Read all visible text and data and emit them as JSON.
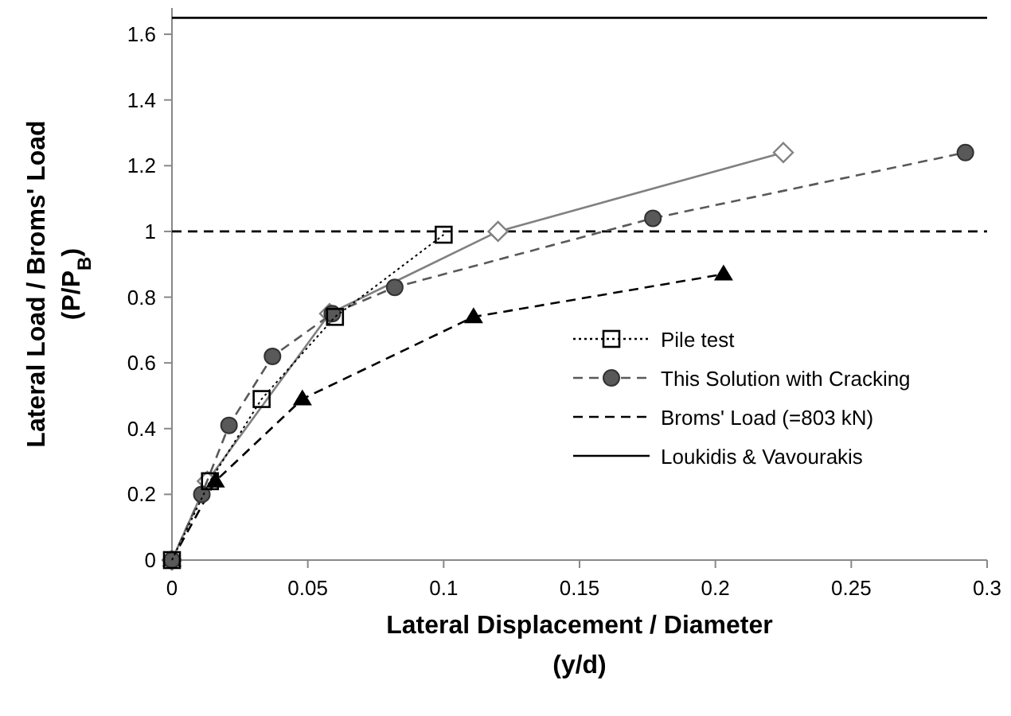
{
  "chart_data": {
    "type": "line",
    "xlabel": "Lateral Displacement / Diameter\n(y/d)",
    "ylabel": "Lateral Load / Broms' Load\n(P/P$_{B}$)",
    "xlim": [
      0,
      0.3
    ],
    "xticks": [
      0,
      0.05,
      0.1,
      0.15,
      0.2,
      0.25,
      0.3
    ],
    "ylim": [
      0,
      1.68
    ],
    "yticks": [
      0,
      0.2,
      0.4,
      0.6,
      0.8,
      1,
      1.2,
      1.4,
      1.6
    ],
    "grid": false,
    "legend": "bottom right",
    "series": [
      {
        "name": "Pile test",
        "color": "#000000",
        "marker": "square",
        "line_style": "dotted",
        "x": [
          0,
          0.014,
          0.033,
          0.06,
          0.1
        ],
        "values": [
          0,
          0.24,
          0.49,
          0.74,
          0.99
        ]
      },
      {
        "name": "This Solution with Cracking",
        "color": "#595959",
        "marker": "circle",
        "line_style": "dashed",
        "x": [
          0,
          0.011,
          0.021,
          0.037,
          0.059,
          0.082,
          0.177,
          0.292
        ],
        "values": [
          0,
          0.2,
          0.41,
          0.62,
          0.75,
          0.83,
          1.04,
          1.24
        ]
      },
      {
        "color": "#000000",
        "marker": "triangle",
        "line_style": "dashed",
        "x": [
          0,
          0.016,
          0.048,
          0.111,
          0.203
        ],
        "values": [
          0,
          0.24,
          0.49,
          0.74,
          0.87
        ]
      },
      {
        "color": "#808080",
        "marker": "diamond",
        "line_style": "solid",
        "x": [
          0,
          0.013,
          0.058,
          0.12,
          0.225
        ],
        "values": [
          0,
          0.24,
          0.75,
          1.0,
          1.24
        ]
      },
      {
        "name": "Broms' Load (=803 kN)",
        "color": "#000000",
        "marker": "none",
        "line_style": "dashed",
        "x": [
          0,
          0.3
        ],
        "values": [
          1,
          1
        ]
      },
      {
        "name": "Loukidis & Vavourakis",
        "color": "#000000",
        "marker": "none",
        "line_style": "solid",
        "x": [
          0,
          0.3
        ],
        "values": [
          1.65,
          1.65
        ]
      }
    ]
  }
}
